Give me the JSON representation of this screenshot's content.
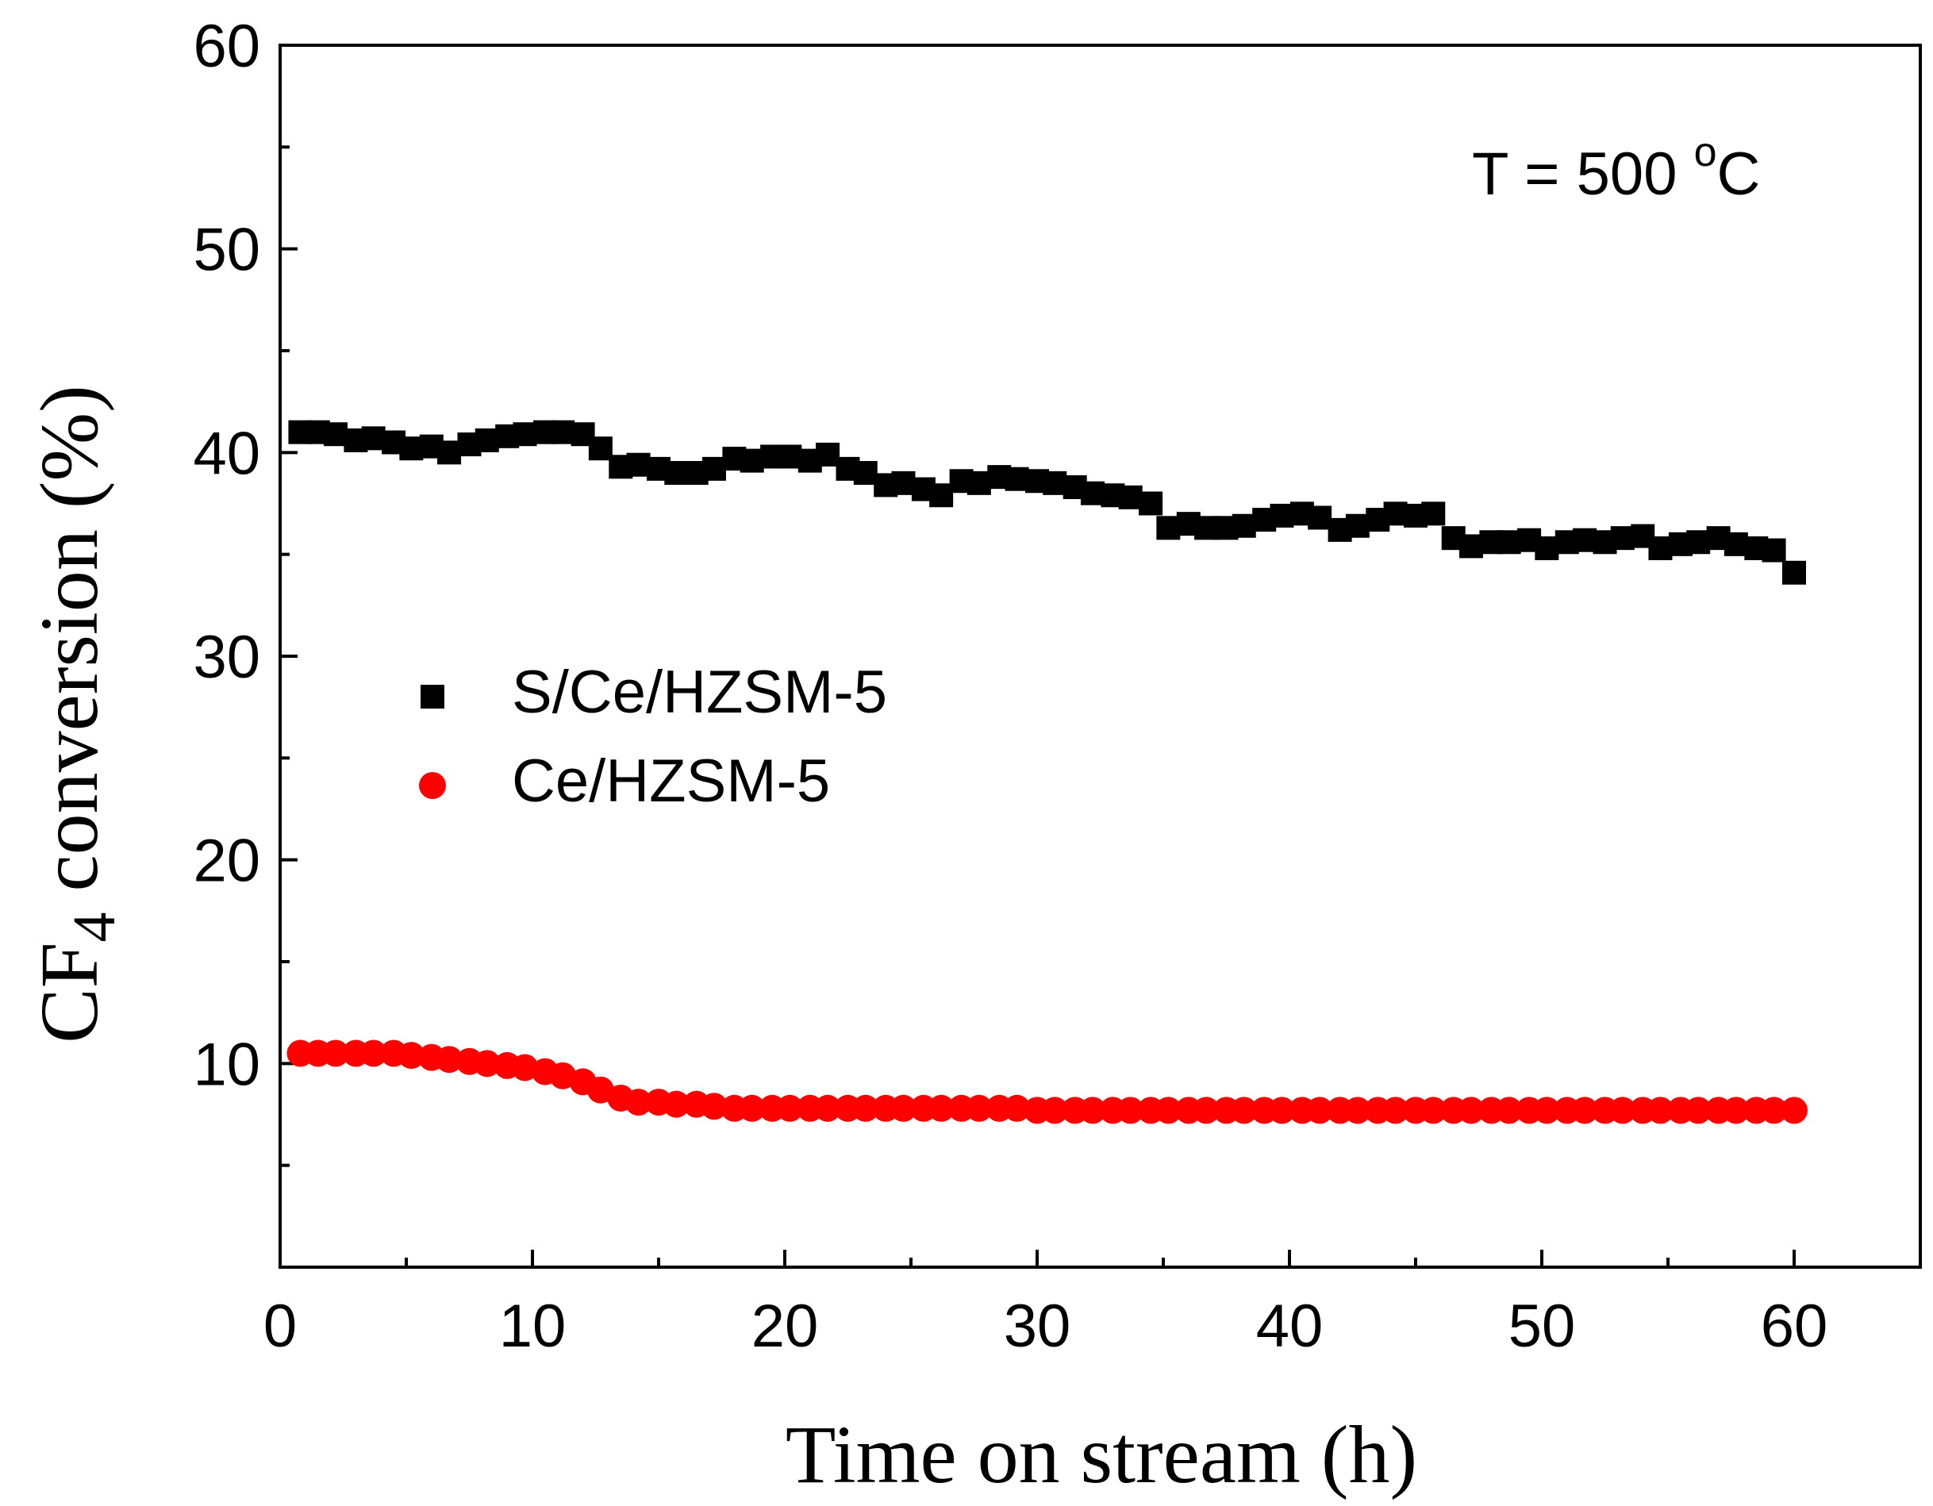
{
  "chart_data": {
    "type": "scatter",
    "title": "",
    "xlabel": "Time on stream  (h)",
    "ylabel": {
      "prefix": "CF",
      "subscript": "4",
      "suffix": " conversion (%)"
    },
    "xlim": [
      0,
      65
    ],
    "ylim": [
      0,
      60
    ],
    "xticks": [
      0,
      10,
      20,
      30,
      40,
      50,
      60
    ],
    "yticks": [
      10,
      20,
      30,
      40,
      50,
      60
    ],
    "grid": false,
    "legend_position": "center-left",
    "annotation": {
      "text": "T = 500 ",
      "superscript": "o",
      "tail": "C"
    },
    "series": [
      {
        "name": "S/Ce/HZSM-5",
        "marker": "square",
        "color": "#000000",
        "x": [
          0.8,
          1.5,
          2.2,
          3.0,
          3.7,
          4.5,
          5.2,
          6.0,
          6.7,
          7.5,
          8.2,
          9.0,
          9.7,
          10.5,
          11.2,
          12.0,
          12.7,
          13.5,
          14.2,
          15.0,
          15.7,
          16.5,
          17.2,
          18.0,
          18.7,
          19.5,
          20.2,
          21.0,
          21.7,
          22.5,
          23.2,
          24.0,
          24.7,
          25.5,
          26.2,
          27.0,
          27.7,
          28.5,
          29.2,
          30.0,
          30.7,
          31.5,
          32.2,
          33.0,
          33.7,
          34.5,
          35.2,
          36.0,
          36.7,
          37.5,
          38.2,
          39.0,
          39.7,
          40.5,
          41.2,
          42.0,
          42.7,
          43.5,
          44.2,
          45.0,
          45.7,
          46.5,
          47.2,
          48.0,
          48.7,
          49.5,
          50.2,
          51.0,
          51.7,
          52.5,
          53.2,
          54.0,
          54.7,
          55.5,
          56.2,
          57.0,
          57.7,
          58.5,
          59.2,
          60.0
        ],
        "y": [
          41.0,
          41.0,
          40.9,
          40.6,
          40.7,
          40.5,
          40.2,
          40.3,
          40.0,
          40.4,
          40.6,
          40.8,
          40.9,
          41.0,
          41.0,
          40.9,
          40.2,
          39.3,
          39.4,
          39.2,
          39.0,
          39.0,
          39.2,
          39.7,
          39.6,
          39.8,
          39.8,
          39.6,
          39.9,
          39.2,
          39.0,
          38.4,
          38.5,
          38.2,
          37.9,
          38.6,
          38.5,
          38.8,
          38.7,
          38.6,
          38.5,
          38.3,
          38.0,
          37.9,
          37.8,
          37.5,
          36.3,
          36.5,
          36.3,
          36.3,
          36.4,
          36.7,
          36.9,
          37.0,
          36.8,
          36.2,
          36.4,
          36.7,
          37.0,
          36.9,
          37.0,
          35.8,
          35.4,
          35.6,
          35.6,
          35.7,
          35.3,
          35.6,
          35.7,
          35.6,
          35.8,
          35.9,
          35.3,
          35.5,
          35.6,
          35.8,
          35.5,
          35.3,
          35.2,
          34.1
        ]
      },
      {
        "name": "Ce/HZSM-5",
        "marker": "circle",
        "color": "#ff0000",
        "x": [
          0.8,
          1.5,
          2.2,
          3.0,
          3.7,
          4.5,
          5.2,
          6.0,
          6.7,
          7.5,
          8.2,
          9.0,
          9.7,
          10.5,
          11.2,
          12.0,
          12.7,
          13.5,
          14.2,
          15.0,
          15.7,
          16.5,
          17.2,
          18.0,
          18.7,
          19.5,
          20.2,
          21.0,
          21.7,
          22.5,
          23.2,
          24.0,
          24.7,
          25.5,
          26.2,
          27.0,
          27.7,
          28.5,
          29.2,
          30.0,
          30.7,
          31.5,
          32.2,
          33.0,
          33.7,
          34.5,
          35.2,
          36.0,
          36.7,
          37.5,
          38.2,
          39.0,
          39.7,
          40.5,
          41.2,
          42.0,
          42.7,
          43.5,
          44.2,
          45.0,
          45.7,
          46.5,
          47.2,
          48.0,
          48.7,
          49.5,
          50.2,
          51.0,
          51.7,
          52.5,
          53.2,
          54.0,
          54.7,
          55.5,
          56.2,
          57.0,
          57.7,
          58.5,
          59.2,
          60.0
        ],
        "y": [
          10.5,
          10.5,
          10.5,
          10.5,
          10.5,
          10.5,
          10.4,
          10.3,
          10.2,
          10.1,
          10.0,
          9.9,
          9.8,
          9.6,
          9.4,
          9.1,
          8.7,
          8.3,
          8.1,
          8.1,
          8.0,
          8.0,
          7.9,
          7.8,
          7.8,
          7.8,
          7.8,
          7.8,
          7.8,
          7.8,
          7.8,
          7.8,
          7.8,
          7.8,
          7.8,
          7.8,
          7.8,
          7.8,
          7.8,
          7.7,
          7.7,
          7.7,
          7.7,
          7.7,
          7.7,
          7.7,
          7.7,
          7.7,
          7.7,
          7.7,
          7.7,
          7.7,
          7.7,
          7.7,
          7.7,
          7.7,
          7.7,
          7.7,
          7.7,
          7.7,
          7.7,
          7.7,
          7.7,
          7.7,
          7.7,
          7.7,
          7.7,
          7.7,
          7.7,
          7.7,
          7.7,
          7.7,
          7.7,
          7.7,
          7.7,
          7.7,
          7.7,
          7.7,
          7.7,
          7.7
        ]
      }
    ]
  }
}
